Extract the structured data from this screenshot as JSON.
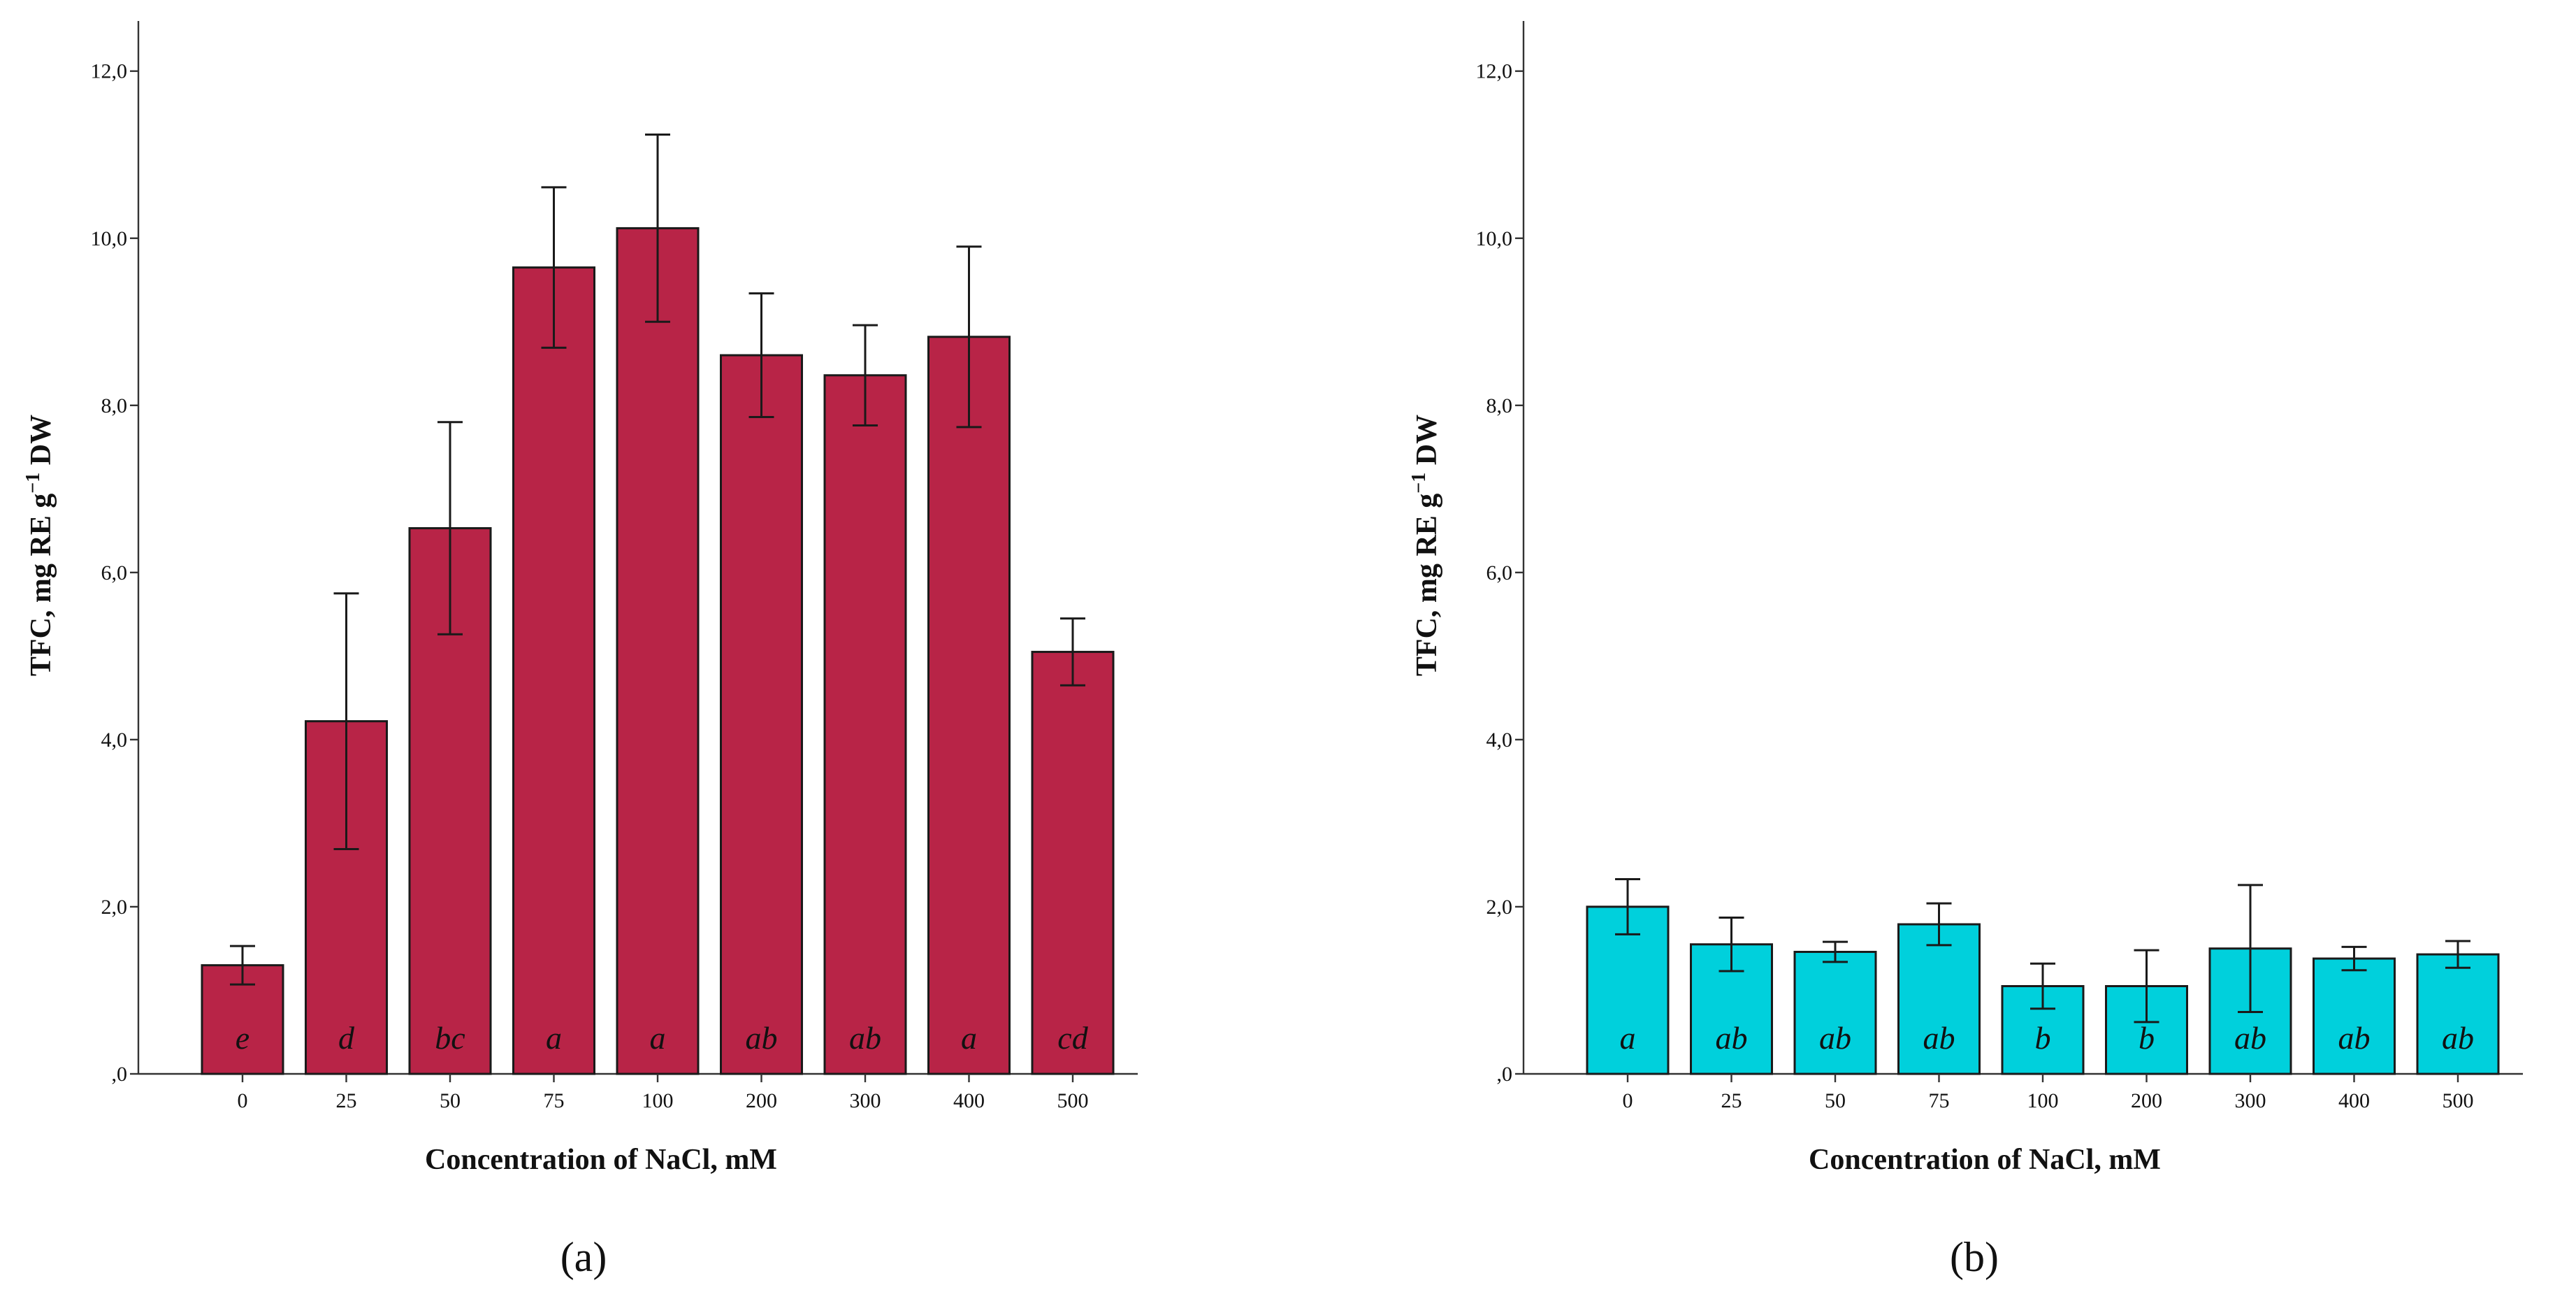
{
  "chart_data": [
    {
      "type": "bar",
      "panel": "(a)",
      "panel_letter": "a",
      "color": "#B82447",
      "categories": [
        "0",
        "25",
        "50",
        "75",
        "100",
        "200",
        "300",
        "400",
        "500"
      ],
      "values": [
        1.3,
        4.22,
        6.53,
        9.65,
        10.12,
        8.6,
        8.36,
        8.82,
        5.05
      ],
      "errors": [
        0.23,
        1.53,
        1.27,
        0.96,
        1.12,
        0.74,
        0.6,
        1.08,
        0.4
      ],
      "significance": [
        "e",
        "d",
        "bc",
        "a",
        "a",
        "ab",
        "ab",
        "a",
        "cd"
      ],
      "xlabel": "Concentration of NaCl, mM",
      "ylabel": "TFC, mg RE g",
      "ylabel_sup": "−1",
      "ylabel_suffix": " DW",
      "ylim": [
        0,
        12.6
      ],
      "yticks": [
        0,
        2,
        4,
        6,
        8,
        10,
        12
      ],
      "ytick_labels": [
        ",0",
        "2,0",
        "4,0",
        "6,0",
        "8,0",
        "10,0",
        "12,0"
      ]
    },
    {
      "type": "bar",
      "panel": "(b)",
      "panel_letter": "b",
      "color": "#00D0DC",
      "categories": [
        "0",
        "25",
        "50",
        "75",
        "100",
        "200",
        "300",
        "400",
        "500"
      ],
      "values": [
        2.0,
        1.55,
        1.46,
        1.79,
        1.05,
        1.05,
        1.5,
        1.38,
        1.43
      ],
      "errors": [
        0.33,
        0.32,
        0.12,
        0.25,
        0.27,
        0.43,
        0.76,
        0.14,
        0.16
      ],
      "significance": [
        "a",
        "ab",
        "ab",
        "ab",
        "b",
        "b",
        "ab",
        "ab",
        "ab"
      ],
      "xlabel": "Concentration of NaCl, mM",
      "ylabel": "TFC, mg RE g",
      "ylabel_sup": "−1",
      "ylabel_suffix": " DW",
      "ylim": [
        0,
        12.6
      ],
      "yticks": [
        0,
        2,
        4,
        6,
        8,
        10,
        12
      ],
      "ytick_labels": [
        ",0",
        "2,0",
        "4,0",
        "6,0",
        "8,0",
        "10,0",
        "12,0"
      ]
    }
  ]
}
